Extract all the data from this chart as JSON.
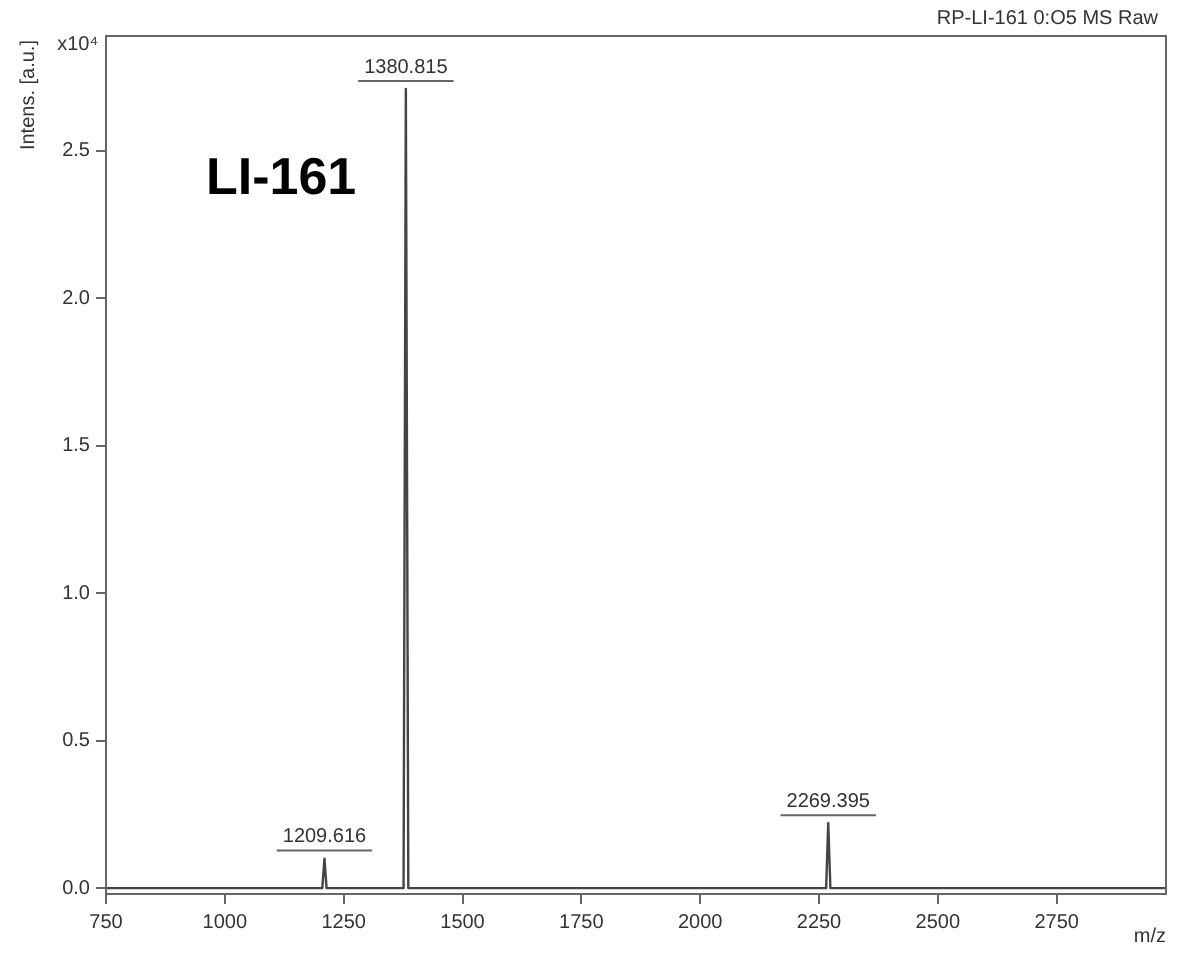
{
  "chart_data": {
    "type": "line",
    "title": "LI-161",
    "subtitle": "RP-LI-161 0:O5 MS Raw",
    "xlabel": "m/z",
    "ylabel": "Intens. [a.u.]",
    "annotations": [
      "x10⁴",
      {
        "text": "1209.616",
        "x": 1209.616,
        "y": 0.1
      },
      {
        "text": "1380.815",
        "x": 1380.815,
        "y": 2.71
      },
      {
        "text": "2269.395",
        "x": 2269.395,
        "y": 0.22
      }
    ],
    "series": [
      {
        "color": "#444444",
        "x": [
          750,
          1000,
          1205,
          1209.6,
          1214,
          1250,
          1376,
          1380.8,
          1386,
          1500,
          1750,
          2000,
          2265,
          2269.4,
          2274,
          2500,
          2750,
          2980
        ],
        "values": [
          0,
          0,
          0,
          0.1,
          0,
          0,
          0,
          2.71,
          0,
          0,
          0,
          0,
          0,
          0.22,
          0,
          0,
          0,
          0
        ]
      }
    ],
    "xlim": [
      750,
      2980
    ],
    "ylim": [
      -0.02,
      2.89
    ],
    "xticks": [
      750,
      1000,
      1250,
      1500,
      1750,
      2000,
      2250,
      2500,
      2750
    ],
    "yticks": [
      {
        "value": 0,
        "label": "0.0"
      },
      {
        "value": 0.5,
        "label": "0.5"
      },
      {
        "value": 1,
        "label": "1.0"
      },
      {
        "value": 1.5,
        "label": "1.5"
      },
      {
        "value": 2,
        "label": "2.0"
      },
      {
        "value": 2.5,
        "label": "2.5"
      }
    ],
    "legend": false,
    "marker": "none",
    "line_style": "solid"
  }
}
